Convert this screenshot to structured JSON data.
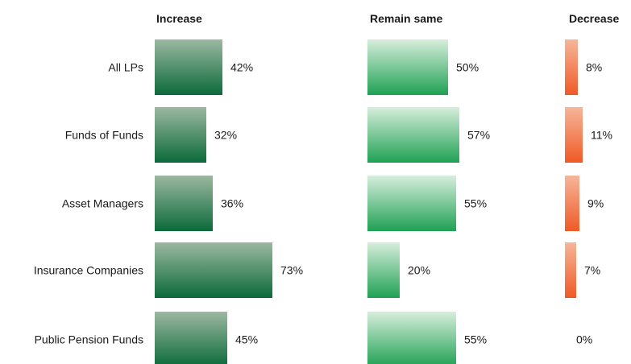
{
  "chart_data": {
    "type": "bar",
    "orientation": "horizontal",
    "layout": "small-multiples",
    "categories": [
      "All LPs",
      "Funds of Funds",
      "Asset Managers",
      "Insurance Companies",
      "Public Pension Funds"
    ],
    "series": [
      {
        "name": "Increase",
        "values": [
          42,
          32,
          36,
          73,
          45
        ],
        "value_labels": [
          "42%",
          "32%",
          "36%",
          "73%",
          "45%"
        ],
        "color_top": "#9cb8a0",
        "color_bottom": "#0b6a3a"
      },
      {
        "name": "Remain same",
        "values": [
          50,
          57,
          55,
          20,
          55
        ],
        "value_labels": [
          "50%",
          "57%",
          "55%",
          "20%",
          "55%"
        ],
        "color_top": "#d7eedc",
        "color_bottom": "#1fa154"
      },
      {
        "name": "Decrease",
        "values": [
          8,
          11,
          9,
          7,
          0
        ],
        "value_labels": [
          "8%",
          "11%",
          "9%",
          "7%",
          "0%"
        ],
        "color_top": "#f6b69a",
        "color_bottom": "#ef5a26"
      }
    ],
    "title": "",
    "xlabel": "",
    "ylabel": "",
    "unit": "%",
    "grid": false,
    "legend": "none"
  }
}
